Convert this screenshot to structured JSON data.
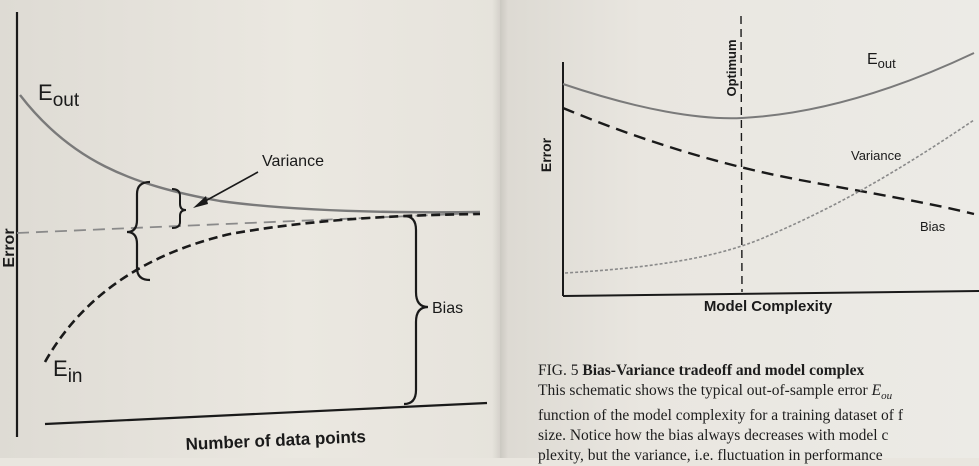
{
  "left_figure": {
    "curve_labels": {
      "e_out": "E",
      "e_out_sub": "out",
      "e_in": "E",
      "e_in_sub": "in"
    },
    "annotations": {
      "variance": "Variance",
      "bias": "Bias"
    },
    "axes": {
      "ylabel": "Error",
      "xlabel": "Number of data points"
    }
  },
  "right_figure": {
    "optimum_label": "Optimum",
    "curve_labels": {
      "e_out": "E",
      "e_out_sub": "out",
      "variance": "Variance",
      "bias": "Bias"
    },
    "axes": {
      "ylabel": "Error",
      "xlabel": "Model Complexity"
    }
  },
  "caption": {
    "fig_label": "FIG. 5",
    "title": "Bias-Variance tradeoff and model complex",
    "line2_pre": "This schematic shows the typical out-of-sample error ",
    "line2_var": "E",
    "line2_sub": "ou",
    "line3": "function of the model complexity for a training dataset of f",
    "line4": "size. Notice how the bias always decreases with model c",
    "line5": "plexity, but the variance, i.e. fluctuation in performance"
  },
  "colors": {
    "curve_gray": "#7a7a7a",
    "curve_black": "#1a1a1a",
    "dashed_gray": "#8a8a8a"
  }
}
